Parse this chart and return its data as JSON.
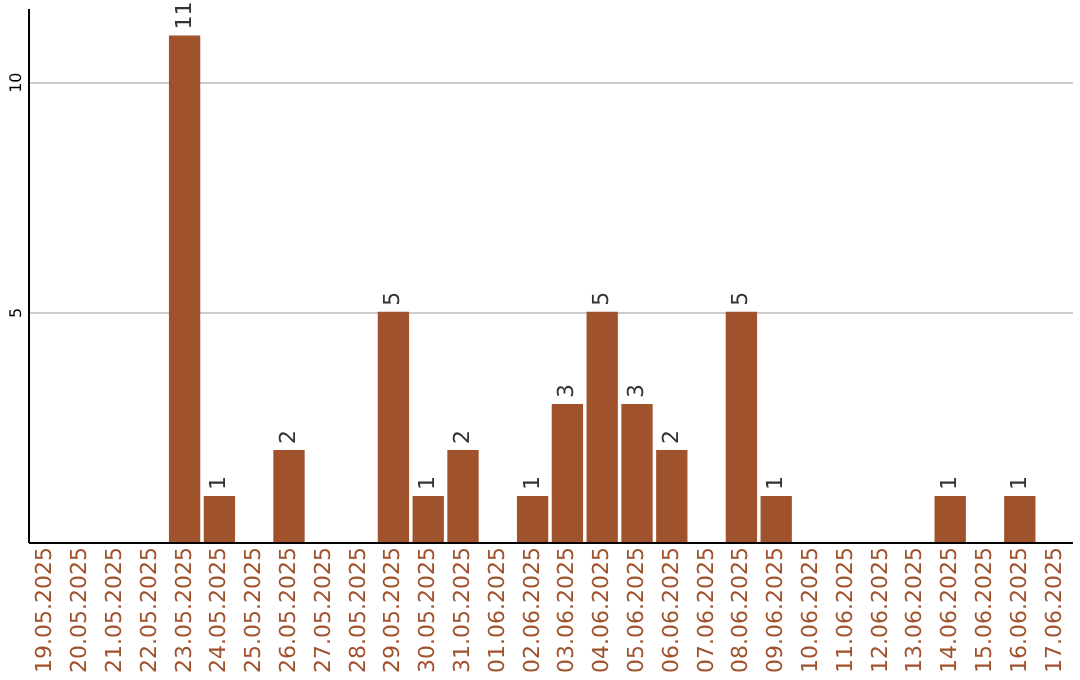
{
  "chart_data": {
    "type": "bar",
    "categories": [
      "19.05.2025",
      "20.05.2025",
      "21.05.2025",
      "22.05.2025",
      "23.05.2025",
      "24.05.2025",
      "25.05.2025",
      "26.05.2025",
      "27.05.2025",
      "28.05.2025",
      "29.05.2025",
      "30.05.2025",
      "31.05.2025",
      "01.06.2025",
      "02.06.2025",
      "03.06.2025",
      "04.06.2025",
      "05.06.2025",
      "06.06.2025",
      "07.06.2025",
      "08.06.2025",
      "09.06.2025",
      "10.06.2025",
      "11.06.2025",
      "12.06.2025",
      "13.06.2025",
      "14.06.2025",
      "15.06.2025",
      "16.06.2025",
      "17.06.2025"
    ],
    "values": [
      0,
      0,
      0,
      0,
      11,
      1,
      0,
      2,
      0,
      0,
      5,
      1,
      2,
      0,
      1,
      3,
      5,
      3,
      2,
      0,
      5,
      1,
      0,
      0,
      0,
      0,
      1,
      0,
      1,
      0
    ],
    "value_labels": [
      null,
      null,
      null,
      null,
      "11",
      "1",
      null,
      "2",
      null,
      null,
      "5",
      "1",
      "2",
      null,
      "1",
      "3",
      "5",
      "3",
      "2",
      null,
      "5",
      "1",
      null,
      null,
      null,
      null,
      "1",
      null,
      "1",
      null
    ],
    "color": "#a0522d",
    "ylim": [
      0,
      11.6
    ],
    "yticks": [
      5,
      10
    ],
    "grid": "y"
  }
}
